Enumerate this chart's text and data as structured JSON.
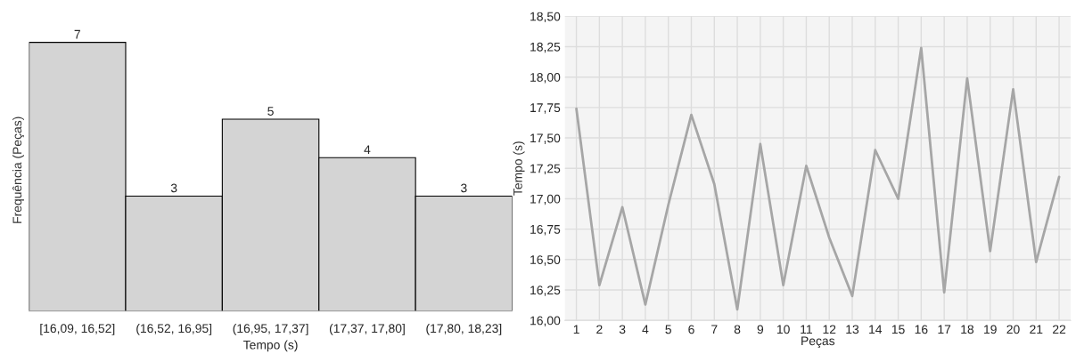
{
  "chart_data": [
    {
      "type": "bar",
      "xlabel": "Tempo (s)",
      "ylabel": "Frequência (Peças)",
      "categories": [
        "[16,09, 16,52]",
        "(16,52, 16,95]",
        "(16,95, 17,37]",
        "(17,37, 17,80]",
        "(17,80, 18,23]"
      ],
      "values": [
        7,
        3,
        5,
        4,
        3
      ],
      "color": "#d4d4d4",
      "data_labels": true,
      "tick_labels": "x",
      "grid": false
    },
    {
      "type": "line",
      "xlabel": "Peças",
      "ylabel": "Tempo (s)",
      "categories": [
        "1",
        "2",
        "3",
        "4",
        "5",
        "6",
        "7",
        "8",
        "9",
        "10",
        "11",
        "12",
        "13",
        "14",
        "15",
        "16",
        "17",
        "18",
        "19",
        "20",
        "21",
        "22"
      ],
      "series": [
        {
          "color": "#a6a6a6",
          "values": [
            17.74,
            16.29,
            16.93,
            16.13,
            16.95,
            17.69,
            17.12,
            16.09,
            17.45,
            16.29,
            17.27,
            16.68,
            16.2,
            17.4,
            17.0,
            18.24,
            16.23,
            17.99,
            16.57,
            17.9,
            16.48,
            17.18
          ]
        }
      ],
      "ylim": [
        16.0,
        18.5
      ],
      "yticks": [
        {
          "value": 16.0,
          "label": "16,00"
        },
        {
          "value": 16.25,
          "label": "16,25"
        },
        {
          "value": 16.5,
          "label": "16,50"
        },
        {
          "value": 16.75,
          "label": "16,75"
        },
        {
          "value": 17.0,
          "label": "17,00"
        },
        {
          "value": 17.25,
          "label": "17,25"
        },
        {
          "value": 17.5,
          "label": "17,50"
        },
        {
          "value": 17.75,
          "label": "17,75"
        },
        {
          "value": 18.0,
          "label": "18,00"
        },
        {
          "value": 18.25,
          "label": "18,25"
        },
        {
          "value": 18.5,
          "label": "18,50"
        }
      ],
      "grid": true,
      "marker": "none",
      "line_style": "solid"
    }
  ]
}
